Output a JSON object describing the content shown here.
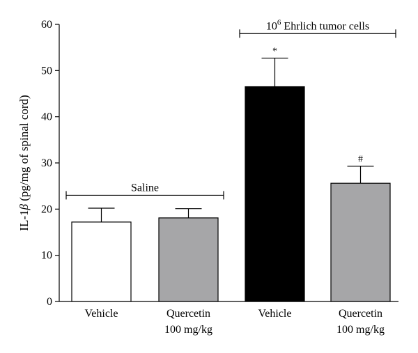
{
  "chart_data": {
    "type": "bar",
    "ylabel_prefix": "IL-1",
    "ylabel_symbol": "β",
    "ylabel_suffix": " (pg/mg of spinal cord)",
    "ylim": [
      0,
      60
    ],
    "yticks": [
      0,
      10,
      20,
      30,
      40,
      50,
      60
    ],
    "categories": [
      {
        "line1": "Vehicle",
        "line2": ""
      },
      {
        "line1": "Quercetin",
        "line2": "100 mg/kg"
      },
      {
        "line1": "Vehicle",
        "line2": ""
      },
      {
        "line1": "Quercetin",
        "line2": "100 mg/kg"
      }
    ],
    "values": [
      17.2,
      18.1,
      46.5,
      25.6
    ],
    "errors": [
      3.0,
      2.0,
      6.2,
      3.7
    ],
    "fills": [
      "#ffffff",
      "#a6a6a8",
      "#000000",
      "#a6a6a8"
    ],
    "significance": [
      "",
      "",
      "*",
      "#"
    ],
    "groups": [
      {
        "base": "Saline",
        "sup": "",
        "rest": "",
        "from": 0,
        "to": 1,
        "y": 23
      },
      {
        "base": "10",
        "sup": "6",
        "rest": " Ehrlich tumor cells",
        "from": 2,
        "to": 3,
        "y": 58
      }
    ],
    "grid": false,
    "legend": "none"
  }
}
